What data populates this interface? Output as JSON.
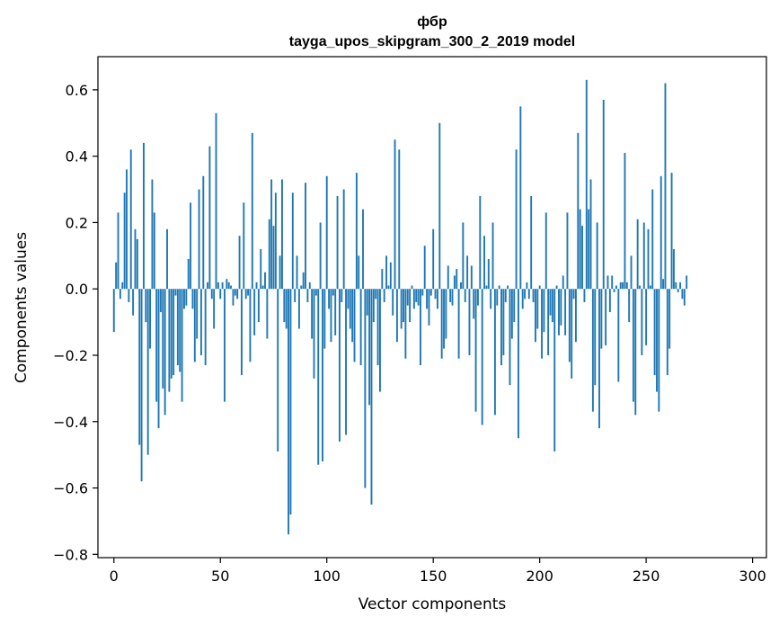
{
  "chart_data": {
    "type": "bar",
    "title": "фбр",
    "subtitle": "tayga_upos_skipgram_300_2_2019 model",
    "xlabel": "Vector components",
    "ylabel": "Components values",
    "xlim": [
      -7.5,
      306.5
    ],
    "ylim": [
      -0.81,
      0.7
    ],
    "xticks": [
      0,
      50,
      100,
      150,
      200,
      250,
      300
    ],
    "xtick_labels": [
      "0",
      "50",
      "100",
      "150",
      "200",
      "250",
      "300"
    ],
    "yticks": [
      -0.8,
      -0.6,
      -0.4,
      -0.2,
      0.0,
      0.2,
      0.4,
      0.6
    ],
    "ytick_labels": [
      "−0.8",
      "−0.6",
      "−0.4",
      "−0.2",
      "0.0",
      "0.2",
      "0.4",
      "0.6"
    ],
    "bar_color": "#1f77b4",
    "grid": false,
    "values": [
      -0.13,
      0.08,
      0.23,
      -0.03,
      0.02,
      0.29,
      0.36,
      -0.04,
      0.42,
      -0.08,
      0.18,
      0.15,
      -0.47,
      -0.58,
      0.44,
      -0.1,
      -0.5,
      -0.18,
      0.33,
      0.23,
      -0.34,
      -0.42,
      -0.07,
      -0.3,
      -0.38,
      0.18,
      -0.31,
      -0.27,
      -0.26,
      -0.02,
      -0.23,
      -0.25,
      -0.34,
      -0.06,
      -0.05,
      0.09,
      0.26,
      -0.06,
      -0.22,
      -0.15,
      0.3,
      -0.2,
      0.34,
      -0.23,
      0.02,
      0.43,
      -0.03,
      -0.12,
      0.53,
      0.02,
      -0.03,
      0.02,
      -0.34,
      0.03,
      0.02,
      0.01,
      -0.05,
      -0.02,
      -0.03,
      0.16,
      -0.26,
      0.26,
      -0.03,
      -0.02,
      -0.22,
      0.47,
      -0.14,
      0.02,
      -0.1,
      0.12,
      0.01,
      0.05,
      -0.15,
      0.21,
      0.33,
      0.19,
      0.29,
      -0.49,
      0.1,
      0.33,
      -0.1,
      -0.12,
      -0.74,
      -0.68,
      0.29,
      -0.04,
      0.1,
      -0.12,
      0.01,
      0.05,
      0.32,
      -0.04,
      0.02,
      -0.15,
      -0.27,
      -0.02,
      -0.53,
      0.2,
      -0.52,
      -0.18,
      0.34,
      -0.06,
      -0.16,
      -0.02,
      -0.14,
      0.28,
      -0.46,
      -0.04,
      0.3,
      -0.44,
      -0.06,
      -0.12,
      -0.16,
      -0.22,
      0.35,
      0.1,
      -0.23,
      0.24,
      -0.6,
      -0.08,
      -0.35,
      -0.65,
      -0.1,
      -0.03,
      -0.23,
      -0.31,
      0.06,
      -0.04,
      0.1,
      0.01,
      0.08,
      -0.08,
      0.45,
      -0.16,
      0.42,
      -0.12,
      -0.1,
      -0.21,
      -0.05,
      -0.1,
      0.01,
      -0.06,
      -0.04,
      -0.05,
      -0.23,
      -0.02,
      0.13,
      -0.06,
      -0.11,
      -0.02,
      0.18,
      -0.03,
      -0.06,
      0.5,
      -0.21,
      -0.18,
      -0.15,
      0.07,
      -0.04,
      -0.05,
      0.04,
      0.06,
      -0.21,
      0.02,
      0.2,
      -0.04,
      0.1,
      -0.2,
      0.07,
      -0.09,
      -0.37,
      -0.05,
      0.28,
      -0.41,
      0.16,
      0.01,
      0.09,
      -0.06,
      0.2,
      -0.38,
      -0.05,
      0.01,
      -0.23,
      -0.2,
      -0.04,
      0.01,
      -0.29,
      -0.15,
      -0.1,
      0.42,
      -0.45,
      0.55,
      -0.06,
      -0.03,
      0.02,
      -0.03,
      0.28,
      -0.04,
      -0.16,
      -0.12,
      0.01,
      -0.21,
      -0.13,
      0.23,
      -0.2,
      -0.08,
      -0.1,
      -0.49,
      0.01,
      -0.14,
      -0.11,
      0.04,
      -0.14,
      0.23,
      -0.22,
      -0.27,
      -0.03,
      -0.16,
      0.47,
      0.24,
      0.19,
      -0.04,
      0.63,
      0.24,
      0.33,
      -0.37,
      -0.29,
      0.2,
      -0.42,
      -0.18,
      0.57,
      -0.17,
      0.04,
      -0.07,
      0.04,
      -0.01,
      0.01,
      -0.28,
      0.02,
      0.02,
      0.41,
      0.02,
      -0.1,
      0.1,
      -0.34,
      -0.38,
      0.21,
      0.01,
      -0.2,
      0.2,
      -0.17,
      0.18,
      0.01,
      0.3,
      -0.26,
      -0.31,
      -0.37,
      0.34,
      0.03,
      0.62,
      -0.26,
      -0.18,
      0.35,
      0.12,
      0.02,
      -0.01,
      0.02,
      -0.03,
      -0.05,
      0.04
    ]
  }
}
